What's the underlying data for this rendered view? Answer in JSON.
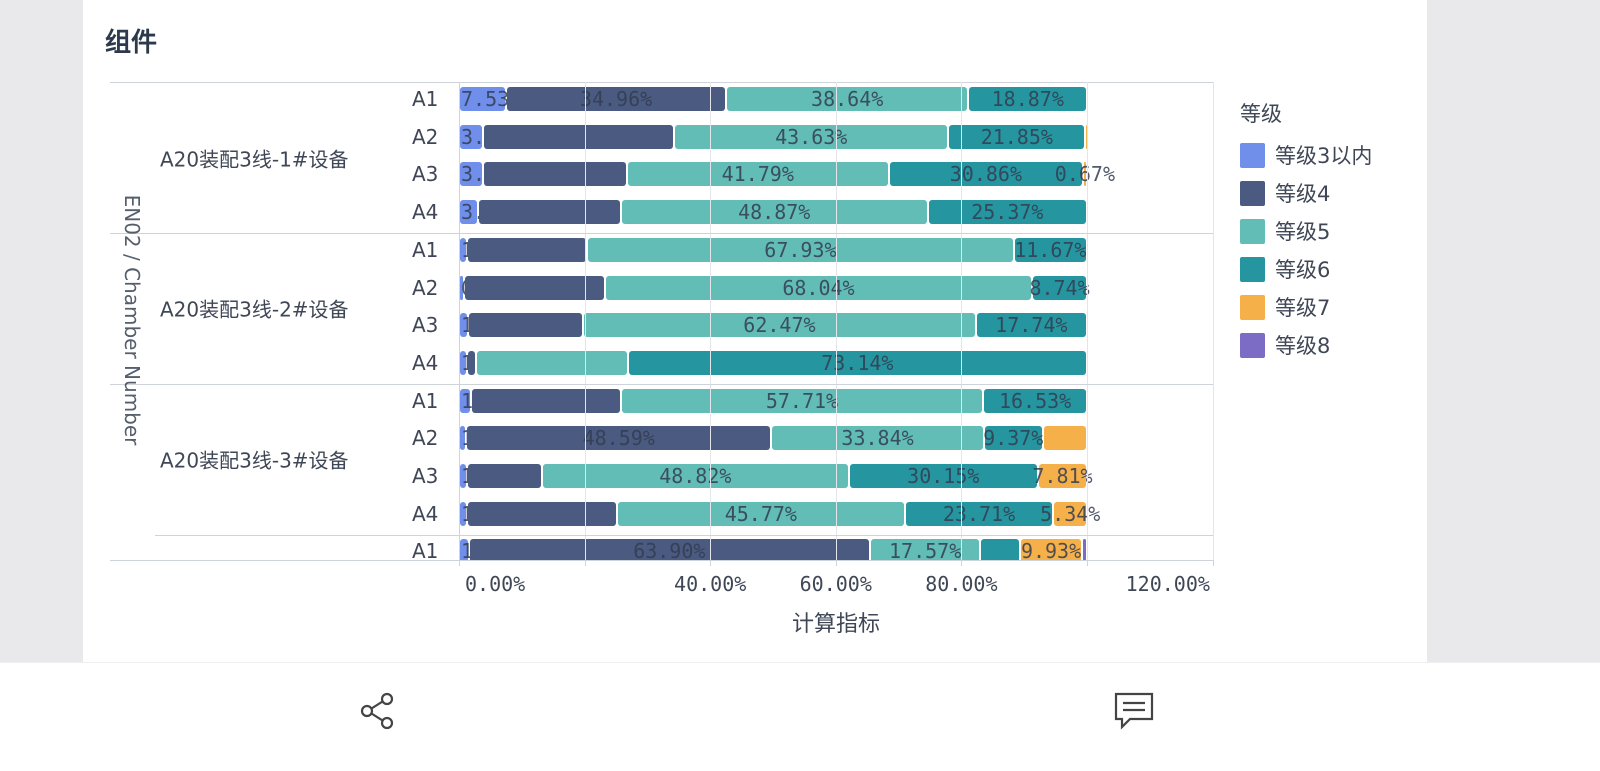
{
  "page": {
    "title": "组件"
  },
  "bottom_bar": {
    "share_icon": "share-icon",
    "comment_icon": "comment-icon"
  },
  "chart_data": {
    "type": "bar",
    "orientation": "horizontal",
    "stacked": true,
    "ylabel": "EN02 / Chamber Number",
    "xlabel": "计算指标",
    "xlim": [
      0,
      120
    ],
    "xticks": [
      "0.00%",
      "40.00%",
      "60.00%",
      "80.00%",
      "120.00%"
    ],
    "xtick_values": [
      0,
      40,
      60,
      80,
      120
    ],
    "grid": true,
    "legend": {
      "title": "等级",
      "position": "right"
    },
    "series": [
      {
        "name": "等级3以内",
        "color": "#6f8fea"
      },
      {
        "name": "等级4",
        "color": "#4a5a80"
      },
      {
        "name": "等级5",
        "color": "#62bdb6"
      },
      {
        "name": "等级6",
        "color": "#2596a0"
      },
      {
        "name": "等级7",
        "color": "#f6b04a"
      },
      {
        "name": "等级8",
        "color": "#7c6cc6"
      }
    ],
    "groups": [
      {
        "name": "A20装配3线-1#设备",
        "rows": [
          {
            "label": "A1",
            "values": [
              7.53,
              34.96,
              38.64,
              18.87,
              0,
              0
            ],
            "labels": [
              "7.53%",
              "34.96%",
              "38.64%",
              "18.87%",
              "",
              ""
            ]
          },
          {
            "label": "A2",
            "values": [
              3.77,
              30.5,
              43.63,
              21.85,
              0.25,
              0
            ],
            "labels": [
              "3.77%",
              "",
              "43.63%",
              "21.85%",
              "",
              ""
            ]
          },
          {
            "label": "A3",
            "values": [
              3.81,
              22.87,
              41.79,
              30.86,
              0.67,
              0
            ],
            "labels": [
              "3.81%",
              "",
              "41.79%",
              "30.86%",
              "0.67%",
              ""
            ]
          },
          {
            "label": "A4",
            "values": [
              3.02,
              22.74,
              48.87,
              25.37,
              0,
              0
            ],
            "labels": [
              "3.02%",
              "",
              "48.87%",
              "25.37%",
              "",
              ""
            ]
          }
        ]
      },
      {
        "name": "A20装配3线-2#设备",
        "rows": [
          {
            "label": "A1",
            "values": [
              1.26,
              19.14,
              67.93,
              11.67,
              0,
              0
            ],
            "labels": [
              "1.26%",
              "",
              "67.93%",
              "11.67%",
              "",
              ""
            ]
          },
          {
            "label": "A2",
            "values": [
              0.85,
              22.37,
              68.04,
              8.74,
              0,
              0
            ],
            "labels": [
              "0.85%",
              "",
              "68.04%",
              "8.74%",
              "",
              ""
            ]
          },
          {
            "label": "A3",
            "values": [
              1.45,
              18.34,
              62.47,
              17.74,
              0,
              0
            ],
            "labels": [
              "1.45%",
              "",
              "62.47%",
              "17.74%",
              "",
              ""
            ]
          },
          {
            "label": "A4",
            "values": [
              1.27,
              1.5,
              24.09,
              73.14,
              0,
              0
            ],
            "labels": [
              "1.27%",
              "",
              "",
              "73.14%",
              "",
              ""
            ]
          }
        ]
      },
      {
        "name": "A20装配3线-3#设备",
        "rows": [
          {
            "label": "A1",
            "values": [
              1.84,
              23.92,
              57.71,
              16.53,
              0,
              0
            ],
            "labels": [
              "1.84%",
              "",
              "57.71%",
              "16.53%",
              "",
              ""
            ]
          },
          {
            "label": "A2",
            "values": [
              1.14,
              48.59,
              33.84,
              9.37,
              7.06,
              0
            ],
            "labels": [
              "1.14%",
              "48.59%",
              "33.84%",
              "9.37%",
              "",
              ""
            ]
          },
          {
            "label": "A3",
            "values": [
              1.21,
              12.01,
              48.82,
              30.15,
              7.81,
              0
            ],
            "labels": [
              "1.21%",
              "",
              "48.82%",
              "30.15%",
              "7.81%",
              ""
            ]
          },
          {
            "label": "A4",
            "values": [
              1.31,
              23.87,
              45.77,
              23.71,
              5.34,
              0
            ],
            "labels": [
              "1.31%",
              "",
              "45.77%",
              "23.71%",
              "5.34%",
              ""
            ]
          }
        ]
      },
      {
        "name": "",
        "rows": [
          {
            "label": "A1",
            "values": [
              1.54,
              63.9,
              17.57,
              6.3,
              9.93,
              0.76
            ],
            "labels": [
              "1.54%",
              "63.90%",
              "17.57%",
              "",
              "9.93%",
              ""
            ]
          }
        ]
      }
    ]
  }
}
